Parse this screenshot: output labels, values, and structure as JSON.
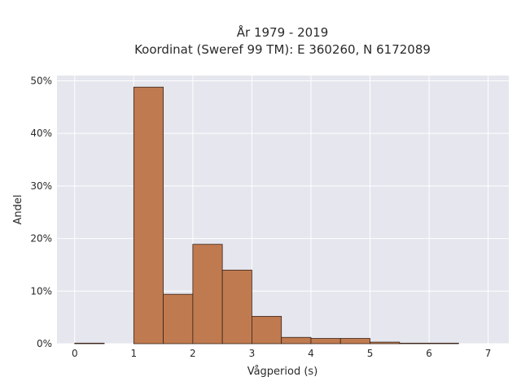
{
  "chart_data": {
    "type": "bar",
    "title": "År 1979 - 2019",
    "subtitle": "Koordinat (Sweref 99 TM): E 360260, N 6172089",
    "xlabel": "Vågperiod (s)",
    "ylabel": "Andel",
    "xlim": [
      -0.3,
      7.35
    ],
    "ylim": [
      0,
      51
    ],
    "x_ticks": [
      0,
      1,
      2,
      3,
      4,
      5,
      6,
      7
    ],
    "x_tick_labels": [
      "0",
      "1",
      "2",
      "3",
      "4",
      "5",
      "6",
      "7"
    ],
    "y_ticks": [
      0,
      10,
      20,
      30,
      40,
      50
    ],
    "y_tick_labels": [
      "0%",
      "10%",
      "20%",
      "30%",
      "40%",
      "50%"
    ],
    "bins": [
      {
        "start": 0.0,
        "end": 0.5,
        "value": 0.1
      },
      {
        "start": 0.5,
        "end": 1.0,
        "value": 0.0
      },
      {
        "start": 1.0,
        "end": 1.5,
        "value": 48.8
      },
      {
        "start": 1.5,
        "end": 2.0,
        "value": 9.4
      },
      {
        "start": 2.0,
        "end": 2.5,
        "value": 18.9
      },
      {
        "start": 2.5,
        "end": 3.0,
        "value": 14.0
      },
      {
        "start": 3.0,
        "end": 3.5,
        "value": 5.2
      },
      {
        "start": 3.5,
        "end": 4.0,
        "value": 1.2
      },
      {
        "start": 4.0,
        "end": 4.5,
        "value": 1.0
      },
      {
        "start": 4.5,
        "end": 5.0,
        "value": 1.0
      },
      {
        "start": 5.0,
        "end": 5.5,
        "value": 0.3
      },
      {
        "start": 5.5,
        "end": 6.0,
        "value": 0.1
      },
      {
        "start": 6.0,
        "end": 6.5,
        "value": 0.1
      }
    ],
    "grid": true,
    "colors": {
      "bar_fill": "#c07a50",
      "bar_stroke": "#3a2418",
      "plot_background": "#e5e6ee",
      "grid": "#ffffff"
    }
  }
}
